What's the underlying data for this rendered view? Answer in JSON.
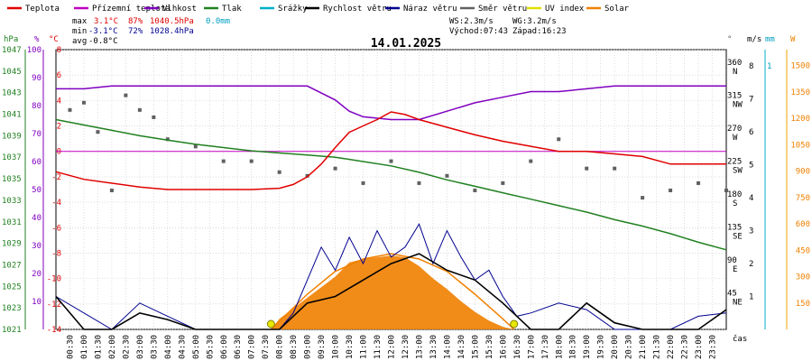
{
  "chart_data": {
    "type": "line",
    "title": "14.01.2025",
    "legend": [
      {
        "label": "Teplota",
        "color": "#e00000"
      },
      {
        "label": "Přízemní teplota",
        "color": "#c000c0"
      },
      {
        "label": "Vlhkost",
        "color": "#8000c0"
      },
      {
        "label": "Tlak",
        "color": "#208020"
      },
      {
        "label": "Srážky",
        "color": "#00b0c8"
      },
      {
        "label": "Rychlost větru",
        "color": "#000000"
      },
      {
        "label": "Náraz větru",
        "color": "#000090"
      },
      {
        "label": "Směr větru",
        "color": "#606060"
      },
      {
        "label": "UV index",
        "color": "#e0e000"
      },
      {
        "label": "Solar",
        "color": "#f08000"
      }
    ],
    "stats": {
      "max_label": "max",
      "min_label": "min",
      "avg_label": "avg",
      "max_temp": "3.1°C",
      "max_hum": "87%",
      "max_press": "1040.5hPa",
      "max_rain": "0.0mm",
      "min_temp": "-3.1°C",
      "min_hum": "72%",
      "min_press": "1028.4hPa",
      "avg_temp": "-0.8°C",
      "ws": "WS:2.3m/s",
      "wg": "WG:3.2m/s",
      "sunrise": "Východ:07:43",
      "sunset": "Západ:16:23"
    },
    "axis_units": {
      "hpa": "hPa",
      "pct": "%",
      "degc": "°C",
      "dir": "°",
      "ms": "m/s",
      "mm": "mm",
      "w": "W",
      "time": "čas"
    },
    "hpa_ticks": [
      1047,
      1045,
      1043,
      1041,
      1039,
      1037,
      1035,
      1033,
      1031,
      1029,
      1027,
      1025,
      1023,
      1021
    ],
    "pct_ticks": [
      100,
      90,
      80,
      70,
      60,
      50,
      40,
      30,
      20,
      10
    ],
    "temp_ticks": [
      8,
      6,
      4,
      2,
      0,
      -2,
      -4,
      -6,
      -8,
      -10,
      -12,
      -14
    ],
    "dir_ticks": [
      "360",
      "315",
      "270",
      "225",
      "180",
      "135",
      "90",
      "45"
    ],
    "dir_names": [
      "N",
      "NW",
      "W",
      "SW",
      "S",
      "SE",
      "E",
      "NE"
    ],
    "ms_ticks": [
      8,
      7,
      6,
      5,
      4,
      3,
      2,
      1
    ],
    "mm_ticks": [
      1
    ],
    "w_ticks": [
      1500,
      1350,
      1200,
      1050,
      900,
      750,
      600,
      450,
      300,
      150
    ],
    "time_labels": [
      "00:30",
      "01:00",
      "01:30",
      "02:00",
      "02:30",
      "03:00",
      "03:30",
      "04:00",
      "04:30",
      "05:00",
      "05:30",
      "06:00",
      "06:30",
      "07:00",
      "07:30",
      "08:00",
      "08:30",
      "09:00",
      "09:30",
      "10:00",
      "10:30",
      "11:00",
      "11:30",
      "12:00",
      "12:30",
      "13:00",
      "13:30",
      "14:00",
      "14:30",
      "15:00",
      "15:30",
      "16:00",
      "16:30",
      "17:00",
      "17:30",
      "18:00",
      "18:30",
      "19:00",
      "19:30",
      "20:00",
      "20:30",
      "21:00",
      "21:30",
      "22:00",
      "22:30",
      "23:00",
      "23:30"
    ],
    "x_unit": "hours",
    "temperature": {
      "x": [
        0,
        1,
        2,
        3,
        4,
        5,
        6,
        7,
        8,
        8.5,
        9,
        9.5,
        10,
        10.5,
        11,
        11.5,
        12,
        12.5,
        13,
        14,
        15,
        16,
        17,
        18,
        19,
        20,
        21,
        22,
        23,
        24
      ],
      "y": [
        -1.6,
        -2.2,
        -2.5,
        -2.8,
        -3.0,
        -3.0,
        -3.0,
        -3.0,
        -2.9,
        -2.6,
        -2.0,
        -1.0,
        0.3,
        1.5,
        2.0,
        2.5,
        3.1,
        2.9,
        2.5,
        1.9,
        1.3,
        0.8,
        0.4,
        0,
        0,
        -0.2,
        -0.4,
        -1.0,
        -1.0,
        -1.0
      ]
    },
    "humidity": {
      "x": [
        0,
        1,
        2,
        3,
        4,
        5,
        6,
        7,
        8,
        9,
        10,
        10.5,
        11,
        12,
        13,
        14,
        15,
        16,
        17,
        18,
        19,
        20,
        21,
        22,
        23,
        24
      ],
      "y": [
        86,
        86,
        87,
        87,
        87,
        87,
        87,
        87,
        87,
        87,
        82,
        78,
        76,
        75,
        75,
        78,
        81,
        83,
        85,
        85,
        86,
        87,
        87,
        87,
        87,
        87
      ],
      "unit": "%"
    },
    "pressure": {
      "x": [
        0,
        1,
        2,
        3,
        4,
        5,
        6,
        7,
        8,
        9,
        10,
        11,
        12,
        13,
        14,
        15,
        16,
        17,
        18,
        19,
        20,
        21,
        22,
        23,
        24
      ],
      "y": [
        1040.5,
        1040.0,
        1039.5,
        1039.0,
        1038.6,
        1038.2,
        1037.9,
        1037.6,
        1037.4,
        1037.2,
        1037.0,
        1036.6,
        1036.2,
        1035.6,
        1034.9,
        1034.3,
        1033.7,
        1033.1,
        1032.5,
        1031.9,
        1031.2,
        1030.6,
        1029.9,
        1029.1,
        1028.4
      ]
    },
    "ground_temp_line": {
      "value": 0
    },
    "wind_speed_ms": {
      "x": [
        0,
        1,
        2,
        3,
        4,
        5,
        6,
        7,
        8,
        9,
        10,
        11,
        12,
        13,
        14,
        15,
        16,
        17,
        18,
        19,
        20,
        21,
        22,
        23,
        24
      ],
      "y": [
        1,
        0,
        0,
        0.5,
        0.3,
        0,
        0,
        0,
        0,
        0.8,
        1,
        1.5,
        2,
        2.3,
        1.8,
        1.5,
        0.8,
        0,
        0,
        0.8,
        0.2,
        0,
        0,
        0,
        0.6
      ]
    },
    "wind_gust_ms": {
      "x": [
        0,
        1,
        2,
        3,
        4,
        5,
        6,
        7,
        8,
        8.5,
        9,
        9.5,
        10,
        10.5,
        11,
        11.5,
        12,
        12.5,
        13,
        13.5,
        14,
        14.5,
        15,
        15.5,
        16,
        16.5,
        17,
        18,
        19,
        20,
        21,
        22,
        23,
        24
      ],
      "y": [
        1,
        0.5,
        0,
        0.8,
        0.4,
        0,
        0,
        0,
        0,
        0.5,
        1.5,
        2.5,
        1.8,
        2.8,
        2.0,
        3.0,
        2.2,
        2.5,
        3.2,
        2.0,
        3.0,
        2.2,
        1.5,
        1.8,
        1.0,
        0.4,
        0.5,
        0.8,
        0.6,
        0,
        0,
        0,
        0.4,
        0.5
      ]
    },
    "wind_dir_deg": {
      "x": [
        0.5,
        1,
        1.5,
        2,
        2.5,
        3,
        3.5,
        4,
        5,
        6,
        7,
        8,
        9,
        10,
        11,
        12,
        13,
        14,
        15,
        16,
        17,
        18,
        19,
        20,
        21,
        22,
        23,
        24
      ],
      "y": [
        300,
        310,
        270,
        190,
        320,
        300,
        290,
        260,
        250,
        230,
        230,
        215,
        210,
        220,
        200,
        230,
        200,
        210,
        190,
        200,
        230,
        260,
        220,
        220,
        180,
        190,
        200,
        190
      ]
    },
    "solar_w": {
      "x": [
        7.7,
        8,
        9,
        10,
        10.5,
        11,
        11.5,
        12,
        12.5,
        13,
        13.5,
        14,
        14.5,
        15,
        15.5,
        16,
        16.4
      ],
      "y": [
        0,
        60,
        180,
        300,
        380,
        400,
        410,
        420,
        410,
        360,
        290,
        230,
        160,
        100,
        50,
        15,
        0
      ]
    },
    "solar_theoretical_w": {
      "x": [
        7.7,
        9,
        10,
        11,
        12,
        13,
        14,
        15,
        16,
        16.4
      ],
      "y": [
        0,
        200,
        330,
        400,
        430,
        400,
        330,
        200,
        60,
        0
      ]
    },
    "uv_markers": {
      "x": [
        7.7,
        16.4
      ]
    }
  }
}
